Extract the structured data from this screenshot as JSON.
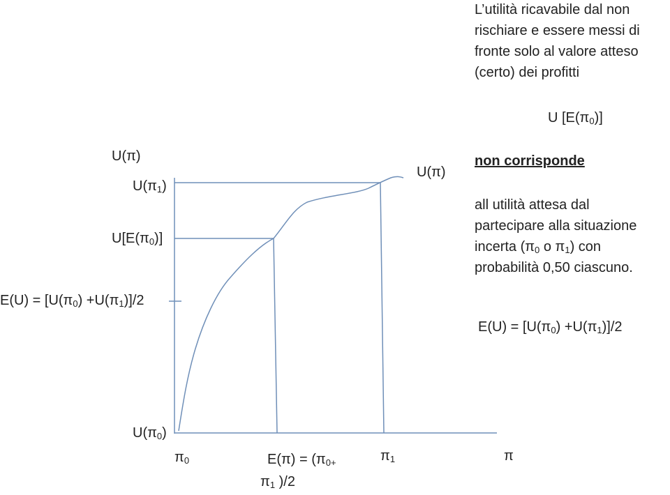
{
  "labels": [
    {
      "segments": [
        {
          "text": "L’utilità ricavabile dal non"
        }
      ]
    },
    {
      "segments": [
        {
          "text": "rischiare e essere messi di"
        }
      ]
    },
    {
      "segments": [
        {
          "text": "fronte solo al valore atteso"
        }
      ]
    },
    {
      "segments": [
        {
          "text": "(certo) dei profitti"
        }
      ]
    },
    {
      "segments": [
        {
          "text": "U [E(π"
        },
        {
          "text": "0",
          "sub": true
        },
        {
          "text": ")]"
        }
      ]
    },
    {
      "segments": [
        {
          "text": "non corrisponde"
        }
      ],
      "bold": true,
      "underline": true
    },
    {
      "segments": [
        {
          "text": "all utilità attesa dal"
        }
      ]
    },
    {
      "segments": [
        {
          "text": "partecipare alla situazione"
        }
      ]
    },
    {
      "segments": [
        {
          "text": "incerta (π"
        },
        {
          "text": "0",
          "sub": true
        },
        {
          "text": " o π"
        },
        {
          "text": "1",
          "sub": true
        },
        {
          "text": ") con"
        }
      ]
    },
    {
      "segments": [
        {
          "text": "probabilità 0,50 ciascuno."
        }
      ]
    },
    {
      "segments": [
        {
          "text": "E(U) = [U(π"
        },
        {
          "text": "0",
          "sub": true
        },
        {
          "text": ") +U(π"
        },
        {
          "text": "1",
          "sub": true
        },
        {
          "text": ")]/2"
        }
      ]
    },
    {
      "segments": [
        {
          "text": "U(π)"
        }
      ]
    },
    {
      "segments": [
        {
          "text": "U(π"
        },
        {
          "text": "1",
          "sub": true
        },
        {
          "text": ")"
        }
      ]
    },
    {
      "segments": [
        {
          "text": "U[E(π"
        },
        {
          "text": "0",
          "sub": true
        },
        {
          "text": ")]"
        }
      ]
    },
    {
      "segments": [
        {
          "text": "E(U) = [U(π"
        },
        {
          "text": "0",
          "sub": true
        },
        {
          "text": ") +U(π"
        },
        {
          "text": "1",
          "sub": true
        },
        {
          "text": ")]/2"
        }
      ]
    },
    {
      "segments": [
        {
          "text": "U(π)"
        }
      ]
    },
    {
      "segments": [
        {
          "text": "U(π"
        },
        {
          "text": "0",
          "sub": true
        },
        {
          "text": ")"
        }
      ]
    },
    {
      "segments": [
        {
          "text": "π"
        },
        {
          "text": "0",
          "sub": true
        }
      ]
    },
    {
      "segments": [
        {
          "text": "E(π) = (π"
        },
        {
          "text": "0+",
          "sub": true
        }
      ]
    },
    {
      "segments": [
        {
          "text": "π"
        },
        {
          "text": "1",
          "sub": true
        },
        {
          "text": " )/2"
        }
      ]
    },
    {
      "segments": [
        {
          "text": "π"
        },
        {
          "text": "1",
          "sub": true
        }
      ]
    },
    {
      "segments": [
        {
          "text": "π"
        }
      ]
    }
  ]
}
